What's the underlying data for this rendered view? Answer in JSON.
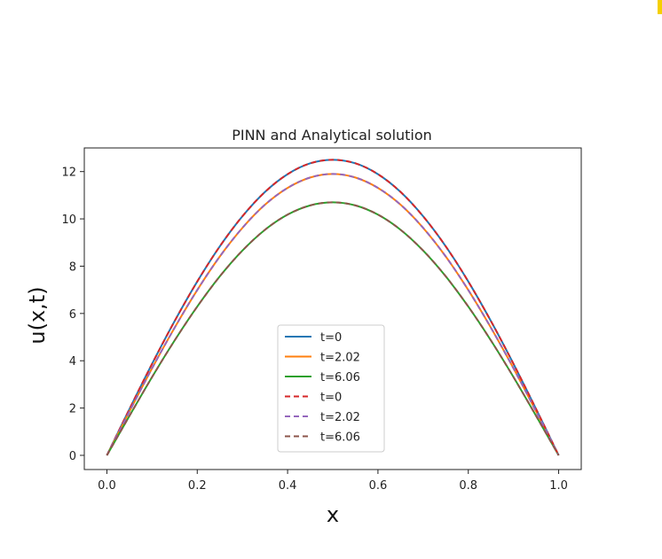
{
  "colors": {
    "corner_mark": "#f5d000"
  },
  "chart_data": {
    "type": "line",
    "title": "PINN and Analytical solution",
    "xlabel": "x",
    "ylabel": "u(x,t)",
    "xlim": [
      -0.05,
      1.05
    ],
    "ylim": [
      -0.6,
      13.0
    ],
    "xticks": [
      0.0,
      0.2,
      0.4,
      0.6,
      0.8,
      1.0
    ],
    "xtick_labels": [
      "0.0",
      "0.2",
      "0.4",
      "0.6",
      "0.8",
      "1.0"
    ],
    "yticks": [
      0,
      2,
      4,
      6,
      8,
      10,
      12
    ],
    "ytick_labels": [
      "0",
      "2",
      "4",
      "6",
      "8",
      "10",
      "12"
    ],
    "grid": false,
    "legend_position": "lower-center",
    "x": [
      0.0,
      0.05,
      0.1,
      0.15,
      0.2,
      0.25,
      0.3,
      0.35,
      0.4,
      0.45,
      0.5,
      0.55,
      0.6,
      0.65,
      0.7,
      0.75,
      0.8,
      0.85,
      0.9,
      0.95,
      1.0
    ],
    "series": [
      {
        "name": "t=0",
        "style": "solid",
        "color": "#1f77b4",
        "values": [
          0.0,
          1.96,
          3.87,
          5.68,
          7.35,
          8.84,
          10.11,
          11.14,
          11.89,
          12.35,
          12.5,
          12.35,
          11.89,
          11.14,
          10.11,
          8.84,
          7.35,
          5.68,
          3.87,
          1.96,
          0.0
        ]
      },
      {
        "name": "t=2.02",
        "style": "solid",
        "color": "#ff7f0e",
        "values": [
          0.0,
          1.86,
          3.68,
          5.4,
          6.99,
          8.41,
          9.62,
          10.6,
          11.31,
          11.75,
          11.9,
          11.75,
          11.31,
          10.6,
          9.62,
          8.41,
          6.99,
          5.4,
          3.68,
          1.86,
          0.0
        ]
      },
      {
        "name": "t=6.06",
        "style": "solid",
        "color": "#2ca02c",
        "values": [
          0.0,
          1.67,
          3.31,
          4.86,
          6.29,
          7.57,
          8.66,
          9.54,
          10.18,
          10.57,
          10.7,
          10.57,
          10.18,
          9.54,
          8.66,
          7.57,
          6.29,
          4.86,
          3.31,
          1.67,
          0.0
        ]
      },
      {
        "name": "t=0",
        "style": "dashed",
        "color": "#d62728",
        "values": [
          0.0,
          1.96,
          3.87,
          5.68,
          7.35,
          8.84,
          10.11,
          11.14,
          11.89,
          12.35,
          12.5,
          12.35,
          11.89,
          11.14,
          10.11,
          8.84,
          7.35,
          5.68,
          3.87,
          1.96,
          0.0
        ]
      },
      {
        "name": "t=2.02",
        "style": "dashed",
        "color": "#9467bd",
        "values": [
          0.0,
          1.86,
          3.68,
          5.4,
          6.99,
          8.41,
          9.62,
          10.6,
          11.31,
          11.75,
          11.9,
          11.75,
          11.31,
          10.6,
          9.62,
          8.41,
          6.99,
          5.4,
          3.68,
          1.86,
          0.0
        ]
      },
      {
        "name": "t=6.06",
        "style": "dashed",
        "color": "#8c564b",
        "values": [
          0.0,
          1.67,
          3.31,
          4.86,
          6.29,
          7.57,
          8.66,
          9.54,
          10.18,
          10.57,
          10.7,
          10.57,
          10.18,
          9.54,
          8.66,
          7.57,
          6.29,
          4.86,
          3.31,
          1.67,
          0.0
        ]
      }
    ]
  }
}
